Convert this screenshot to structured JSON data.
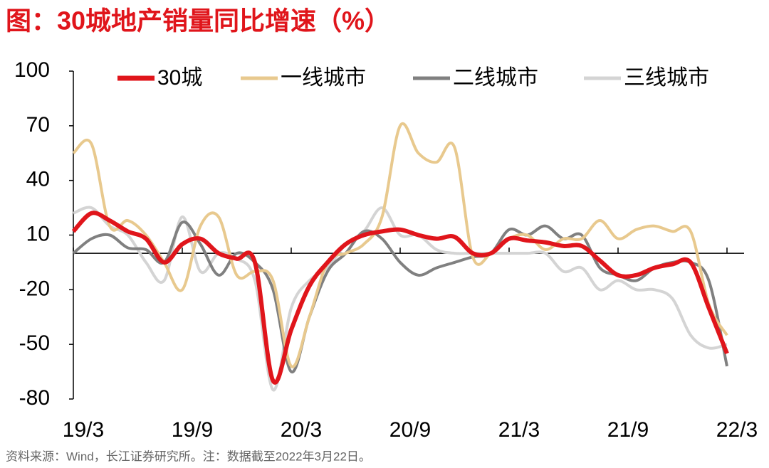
{
  "chart_data": {
    "type": "line",
    "title": "图：30城地产销量同比增速（%）",
    "note": "资料来源：Wind，长江证券研究所。注：数据截至2022年3月22日。",
    "categories": [
      "19/3",
      null,
      null,
      null,
      null,
      null,
      "19/9",
      null,
      null,
      null,
      null,
      null,
      "20/3",
      null,
      null,
      null,
      null,
      null,
      "20/9",
      null,
      null,
      null,
      null,
      null,
      "21/3",
      null,
      null,
      null,
      null,
      null,
      "21/9",
      null,
      null,
      null,
      null,
      null,
      "22/3"
    ],
    "ylim": [
      -80,
      100
    ],
    "yticks": [
      -80,
      -50,
      -20,
      10,
      40,
      70,
      100
    ],
    "legend": "top",
    "series": [
      {
        "name": "30城",
        "color": "#e0151b",
        "width": 6,
        "values": [
          12,
          22,
          18,
          12,
          8,
          -5,
          5,
          8,
          0,
          -3,
          -5,
          -70,
          -42,
          -18,
          -5,
          5,
          10,
          12,
          13,
          10,
          8,
          9,
          0,
          0,
          8,
          7,
          6,
          4,
          4,
          -4,
          -12,
          -12,
          -8,
          -6,
          -5,
          -30,
          -55
        ]
      },
      {
        "name": "一线城市",
        "color": "#e8c98e",
        "width": 4,
        "values": [
          55,
          60,
          15,
          18,
          10,
          -5,
          -20,
          15,
          20,
          -12,
          -10,
          -15,
          -62,
          -35,
          -5,
          0,
          5,
          20,
          70,
          55,
          50,
          58,
          -2,
          0,
          8,
          10,
          2,
          8,
          8,
          18,
          8,
          13,
          15,
          12,
          12,
          -28,
          -45
        ]
      },
      {
        "name": "二线城市",
        "color": "#808080",
        "width": 4,
        "values": [
          0,
          8,
          10,
          3,
          2,
          -5,
          17,
          5,
          -12,
          0,
          -5,
          -20,
          -65,
          -35,
          -10,
          0,
          12,
          8,
          -5,
          -12,
          -8,
          -5,
          -2,
          0,
          13,
          10,
          15,
          8,
          10,
          -8,
          -12,
          -15,
          -8,
          -5,
          -5,
          -15,
          -62
        ]
      },
      {
        "name": "三线城市",
        "color": "#d4d4d4",
        "width": 4,
        "values": [
          22,
          25,
          15,
          10,
          -5,
          -15,
          20,
          -10,
          0,
          -3,
          -15,
          -75,
          -30,
          -15,
          -8,
          5,
          12,
          25,
          10,
          10,
          2,
          0,
          0,
          0,
          0,
          0,
          0,
          -10,
          -8,
          -20,
          -15,
          -20,
          -20,
          -25,
          -45,
          -52,
          -50
        ]
      }
    ]
  }
}
